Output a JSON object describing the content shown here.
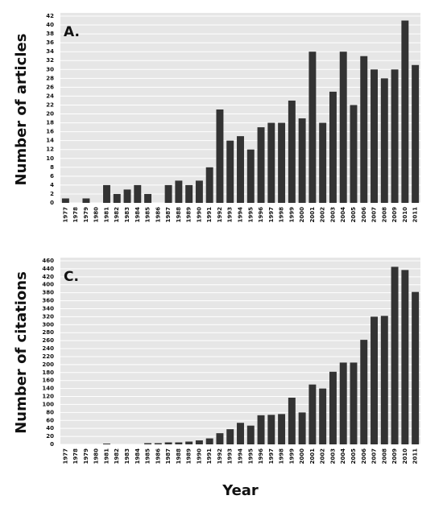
{
  "chart_data": [
    {
      "type": "bar",
      "annotation": "A.",
      "ylabel": "Number of articles",
      "color": "#333333",
      "categories": [
        "1977",
        "1978",
        "1979",
        "1980",
        "1981",
        "1982",
        "1983",
        "1984",
        "1985",
        "1986",
        "1987",
        "1988",
        "1989",
        "1990",
        "1991",
        "1992",
        "1993",
        "1994",
        "1995",
        "1996",
        "1997",
        "1998",
        "1999",
        "2000",
        "2001",
        "2002",
        "2003",
        "2004",
        "2005",
        "2006",
        "2007",
        "2008",
        "2009",
        "2010",
        "2011"
      ],
      "values": [
        1,
        0,
        1,
        0,
        4,
        2,
        3,
        4,
        2,
        0,
        4,
        5,
        4,
        5,
        8,
        21,
        14,
        15,
        12,
        17,
        18,
        18,
        23,
        19,
        34,
        18,
        25,
        34,
        22,
        33,
        30,
        28,
        30,
        41,
        31
      ],
      "ylim": [
        0,
        42
      ],
      "yticks": [
        0,
        2,
        4,
        6,
        8,
        10,
        12,
        14,
        16,
        18,
        20,
        22,
        24,
        26,
        28,
        30,
        32,
        34,
        36,
        38,
        40,
        42
      ],
      "grid": true
    },
    {
      "type": "bar",
      "annotation": "C.",
      "ylabel": "Number of citations",
      "xlabel": "Year",
      "color": "#333333",
      "categories": [
        "1977",
        "1978",
        "1979",
        "1980",
        "1981",
        "1982",
        "1983",
        "1984",
        "1985",
        "1986",
        "1987",
        "1988",
        "1989",
        "1990",
        "1991",
        "1992",
        "1993",
        "1994",
        "1995",
        "1996",
        "1997",
        "1998",
        "1999",
        "2000",
        "2001",
        "2002",
        "2003",
        "2004",
        "2005",
        "2006",
        "2007",
        "2008",
        "2009",
        "2010",
        "2011"
      ],
      "values": [
        0,
        0,
        0,
        0,
        2,
        0,
        0,
        0,
        3,
        3,
        5,
        5,
        7,
        10,
        15,
        28,
        38,
        54,
        47,
        73,
        74,
        76,
        117,
        80,
        150,
        140,
        182,
        205,
        205,
        262,
        320,
        322,
        445,
        437,
        382
      ],
      "ylim": [
        0,
        460
      ],
      "yticks": [
        0,
        20,
        40,
        60,
        80,
        100,
        120,
        140,
        160,
        180,
        200,
        220,
        240,
        260,
        280,
        300,
        320,
        340,
        360,
        380,
        400,
        420,
        440,
        460
      ],
      "grid": true
    }
  ]
}
